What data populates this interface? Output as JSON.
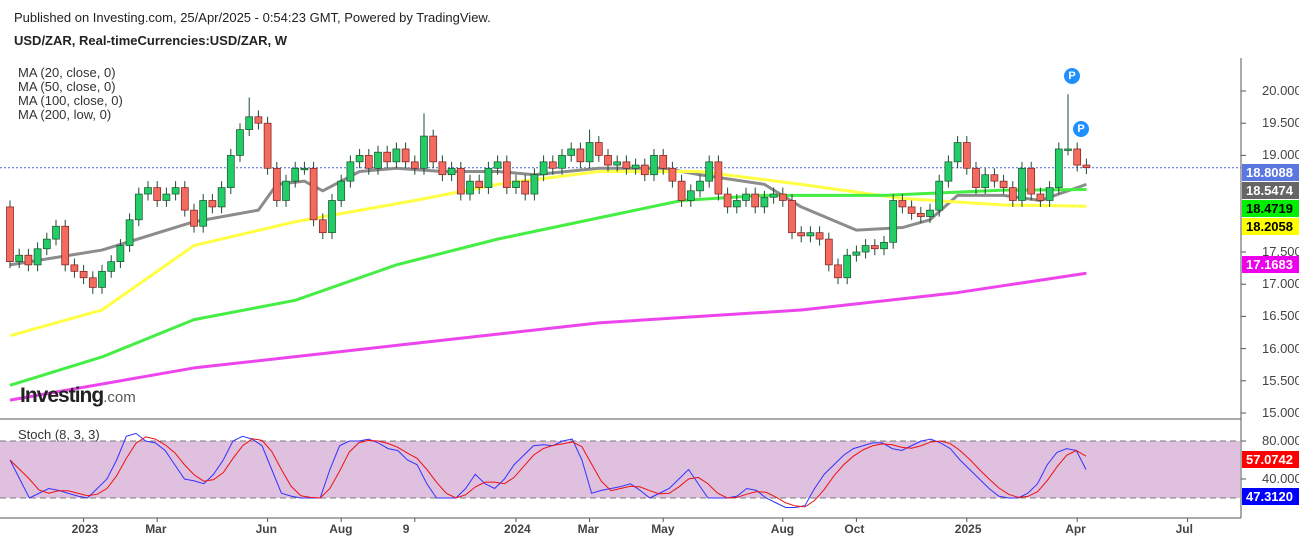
{
  "header": {
    "published": "Published on Investing.com, 25/Apr/2025 - 0:54:23 GMT, Powered by TradingView.",
    "symbol": "USD/ZAR, Real-timeCurrencies:USD/ZAR, W"
  },
  "legend": [
    "MA (20, close, 0)",
    "MA (50, close, 0)",
    "MA (100, close, 0)",
    "MA (200, low, 0)"
  ],
  "stoch_label": "Stoch (8, 3, 3)",
  "logo": {
    "main": "Investing",
    "suffix": ".com"
  },
  "markers": [
    "P",
    "P"
  ],
  "chart_data": {
    "type": "candlestick",
    "price_axis": {
      "range": [
        15.0,
        20.0
      ],
      "ticks": [
        "20.0000",
        "19.5000",
        "19.0000",
        "17.5000",
        "17.0000",
        "16.5000",
        "16.0000",
        "15.5000",
        "15.0000"
      ],
      "tick_values": [
        20,
        19.5,
        19,
        17.5,
        17,
        16.5,
        16,
        15.5,
        15
      ]
    },
    "x_ticks": [
      {
        "label": "2023",
        "week": 8
      },
      {
        "label": "Mar",
        "week": 16
      },
      {
        "label": "Jun",
        "week": 28
      },
      {
        "label": "Aug",
        "week": 36
      },
      {
        "label": "9",
        "week": 44
      },
      {
        "label": "2024",
        "week": 55
      },
      {
        "label": "Mar",
        "week": 63
      },
      {
        "label": "May",
        "week": 71
      },
      {
        "label": "Aug",
        "week": 84
      },
      {
        "label": "Oct",
        "week": 92
      },
      {
        "label": "2025",
        "week": 104
      },
      {
        "label": "Apr",
        "week": 116
      },
      {
        "label": "Jul",
        "week": 128
      }
    ],
    "first_open": 18.2,
    "closes": [
      17.35,
      17.45,
      17.3,
      17.55,
      17.7,
      17.9,
      17.3,
      17.2,
      17.1,
      16.95,
      17.2,
      17.35,
      17.6,
      18.0,
      18.4,
      18.5,
      18.3,
      18.4,
      18.5,
      18.15,
      17.9,
      18.3,
      18.2,
      18.5,
      19.0,
      19.4,
      19.6,
      19.5,
      18.8,
      18.3,
      18.6,
      18.8,
      18.8,
      18.0,
      17.8,
      18.3,
      18.6,
      18.9,
      19.0,
      18.8,
      19.05,
      18.9,
      19.1,
      18.9,
      18.8,
      19.3,
      18.9,
      18.7,
      18.8,
      18.4,
      18.6,
      18.5,
      18.8,
      18.9,
      18.5,
      18.6,
      18.4,
      18.7,
      18.9,
      18.8,
      19.0,
      19.1,
      18.9,
      19.2,
      19.0,
      18.85,
      18.9,
      18.8,
      18.85,
      18.7,
      19.0,
      18.8,
      18.6,
      18.3,
      18.45,
      18.6,
      18.9,
      18.4,
      18.2,
      18.3,
      18.4,
      18.2,
      18.35,
      18.4,
      18.3,
      17.8,
      17.75,
      17.8,
      17.7,
      17.3,
      17.1,
      17.45,
      17.5,
      17.6,
      17.55,
      17.65,
      18.3,
      18.2,
      18.1,
      18.05,
      18.15,
      18.6,
      18.9,
      19.2,
      18.8,
      18.5,
      18.7,
      18.6,
      18.5,
      18.3,
      18.8,
      18.4,
      18.3,
      18.5,
      19.1,
      19.1,
      18.85,
      18.81
    ],
    "high_overrides": {
      "26": 19.9,
      "45": 19.65,
      "115": 19.95,
      "63": 19.4
    },
    "last_price": "18.8088",
    "moving_averages": [
      {
        "name": "MA 20",
        "color": "#8c8c8c",
        "last": "18.5474",
        "points": [
          [
            0,
            17.3
          ],
          [
            10,
            17.53
          ],
          [
            20,
            17.97
          ],
          [
            27,
            18.15
          ],
          [
            29,
            18.55
          ],
          [
            32,
            18.6
          ],
          [
            34,
            18.45
          ],
          [
            38,
            18.75
          ],
          [
            42,
            18.8
          ],
          [
            47,
            18.75
          ],
          [
            53,
            18.75
          ],
          [
            57,
            18.7
          ],
          [
            64,
            18.8
          ],
          [
            71,
            18.8
          ],
          [
            75,
            18.7
          ],
          [
            82,
            18.55
          ],
          [
            86,
            18.2
          ],
          [
            92,
            17.84
          ],
          [
            97,
            17.88
          ],
          [
            100,
            18.0
          ],
          [
            103,
            18.38
          ],
          [
            108,
            18.38
          ],
          [
            112,
            18.3
          ],
          [
            117,
            18.55
          ]
        ]
      },
      {
        "name": "MA 50",
        "color": "#ffff44",
        "last": "18.2058",
        "points": [
          [
            0,
            16.2
          ],
          [
            10,
            16.6
          ],
          [
            20,
            17.6
          ],
          [
            31,
            17.97
          ],
          [
            44,
            18.3
          ],
          [
            53,
            18.55
          ],
          [
            64,
            18.75
          ],
          [
            75,
            18.75
          ],
          [
            86,
            18.55
          ],
          [
            97,
            18.33
          ],
          [
            108,
            18.23
          ],
          [
            117,
            18.21
          ]
        ]
      },
      {
        "name": "MA 100",
        "color": "#44ee44",
        "last": "18.4719",
        "points": [
          [
            0,
            15.43
          ],
          [
            10,
            15.87
          ],
          [
            20,
            16.45
          ],
          [
            31,
            16.75
          ],
          [
            42,
            17.3
          ],
          [
            53,
            17.7
          ],
          [
            64,
            18.03
          ],
          [
            73,
            18.3
          ],
          [
            82,
            18.38
          ],
          [
            95,
            18.38
          ],
          [
            108,
            18.46
          ],
          [
            117,
            18.47
          ]
        ]
      },
      {
        "name": "MA 200",
        "color": "#ee44ee",
        "last": "17.1683",
        "points": [
          [
            0,
            15.2
          ],
          [
            20,
            15.7
          ],
          [
            42,
            16.05
          ],
          [
            64,
            16.4
          ],
          [
            86,
            16.6
          ],
          [
            103,
            16.87
          ],
          [
            117,
            17.17
          ]
        ]
      }
    ],
    "stochastic": {
      "range": [
        0,
        100
      ],
      "ticks": [
        "80.0000",
        "40.0000"
      ],
      "upper": 80,
      "lower": 20,
      "k_last": "47.3120",
      "d_last": "57.0742",
      "k_color": "#3333ff",
      "d_color": "#ee1111",
      "k": [
        60,
        40,
        20,
        25,
        30,
        28,
        25,
        22,
        20,
        30,
        40,
        60,
        85,
        88,
        80,
        78,
        70,
        55,
        40,
        38,
        35,
        45,
        60,
        80,
        85,
        82,
        75,
        50,
        25,
        22,
        20,
        20,
        20,
        50,
        75,
        80,
        80,
        82,
        78,
        72,
        70,
        60,
        55,
        35,
        20,
        20,
        20,
        30,
        45,
        35,
        30,
        40,
        55,
        65,
        75,
        76,
        75,
        80,
        82,
        60,
        25,
        28,
        30,
        32,
        35,
        28,
        20,
        25,
        30,
        40,
        50,
        35,
        20,
        20,
        20,
        22,
        30,
        28,
        20,
        15,
        10,
        10,
        12,
        30,
        45,
        55,
        65,
        72,
        75,
        78,
        78,
        72,
        70,
        75,
        80,
        82,
        78,
        72,
        60,
        50,
        40,
        30,
        22,
        20,
        20,
        25,
        35,
        55,
        68,
        72,
        70,
        50
      ]
    }
  }
}
